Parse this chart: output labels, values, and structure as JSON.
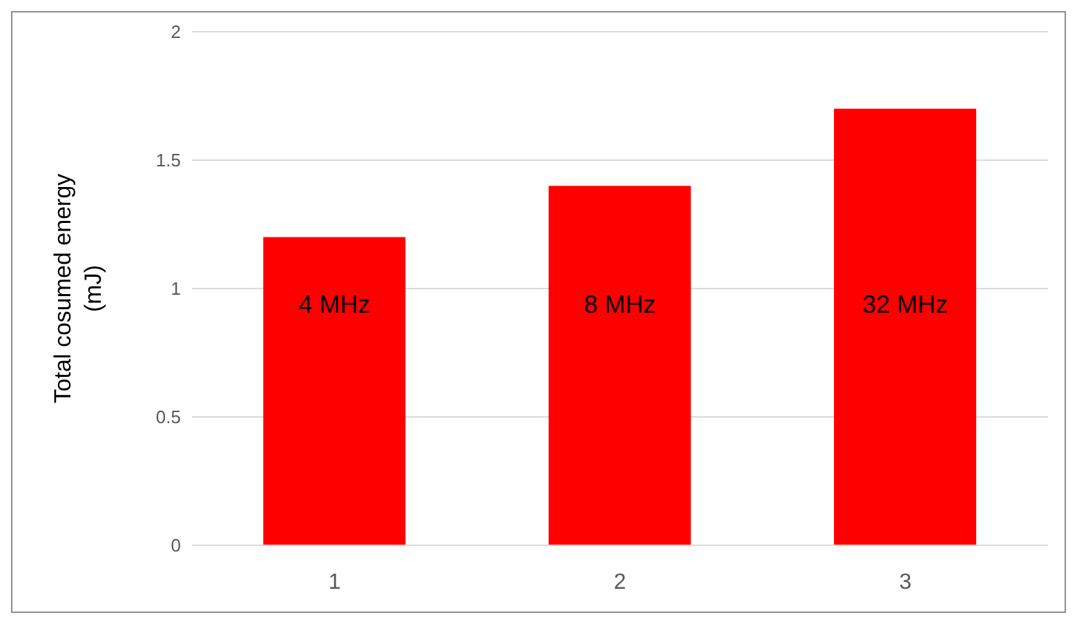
{
  "chart_data": {
    "type": "bar",
    "ylabel": "Total cosumed energy (mJ)",
    "categories": [
      "1",
      "2",
      "3"
    ],
    "values": [
      1.2,
      1.4,
      1.7
    ],
    "color": "#ff0000",
    "ylim": [
      0,
      2
    ],
    "yticks": [
      0,
      0.5,
      1,
      1.5,
      2
    ],
    "grid": "y",
    "legend": false,
    "annotations": [
      "4 MHz",
      "8 MHz",
      "32 MHz"
    ]
  }
}
